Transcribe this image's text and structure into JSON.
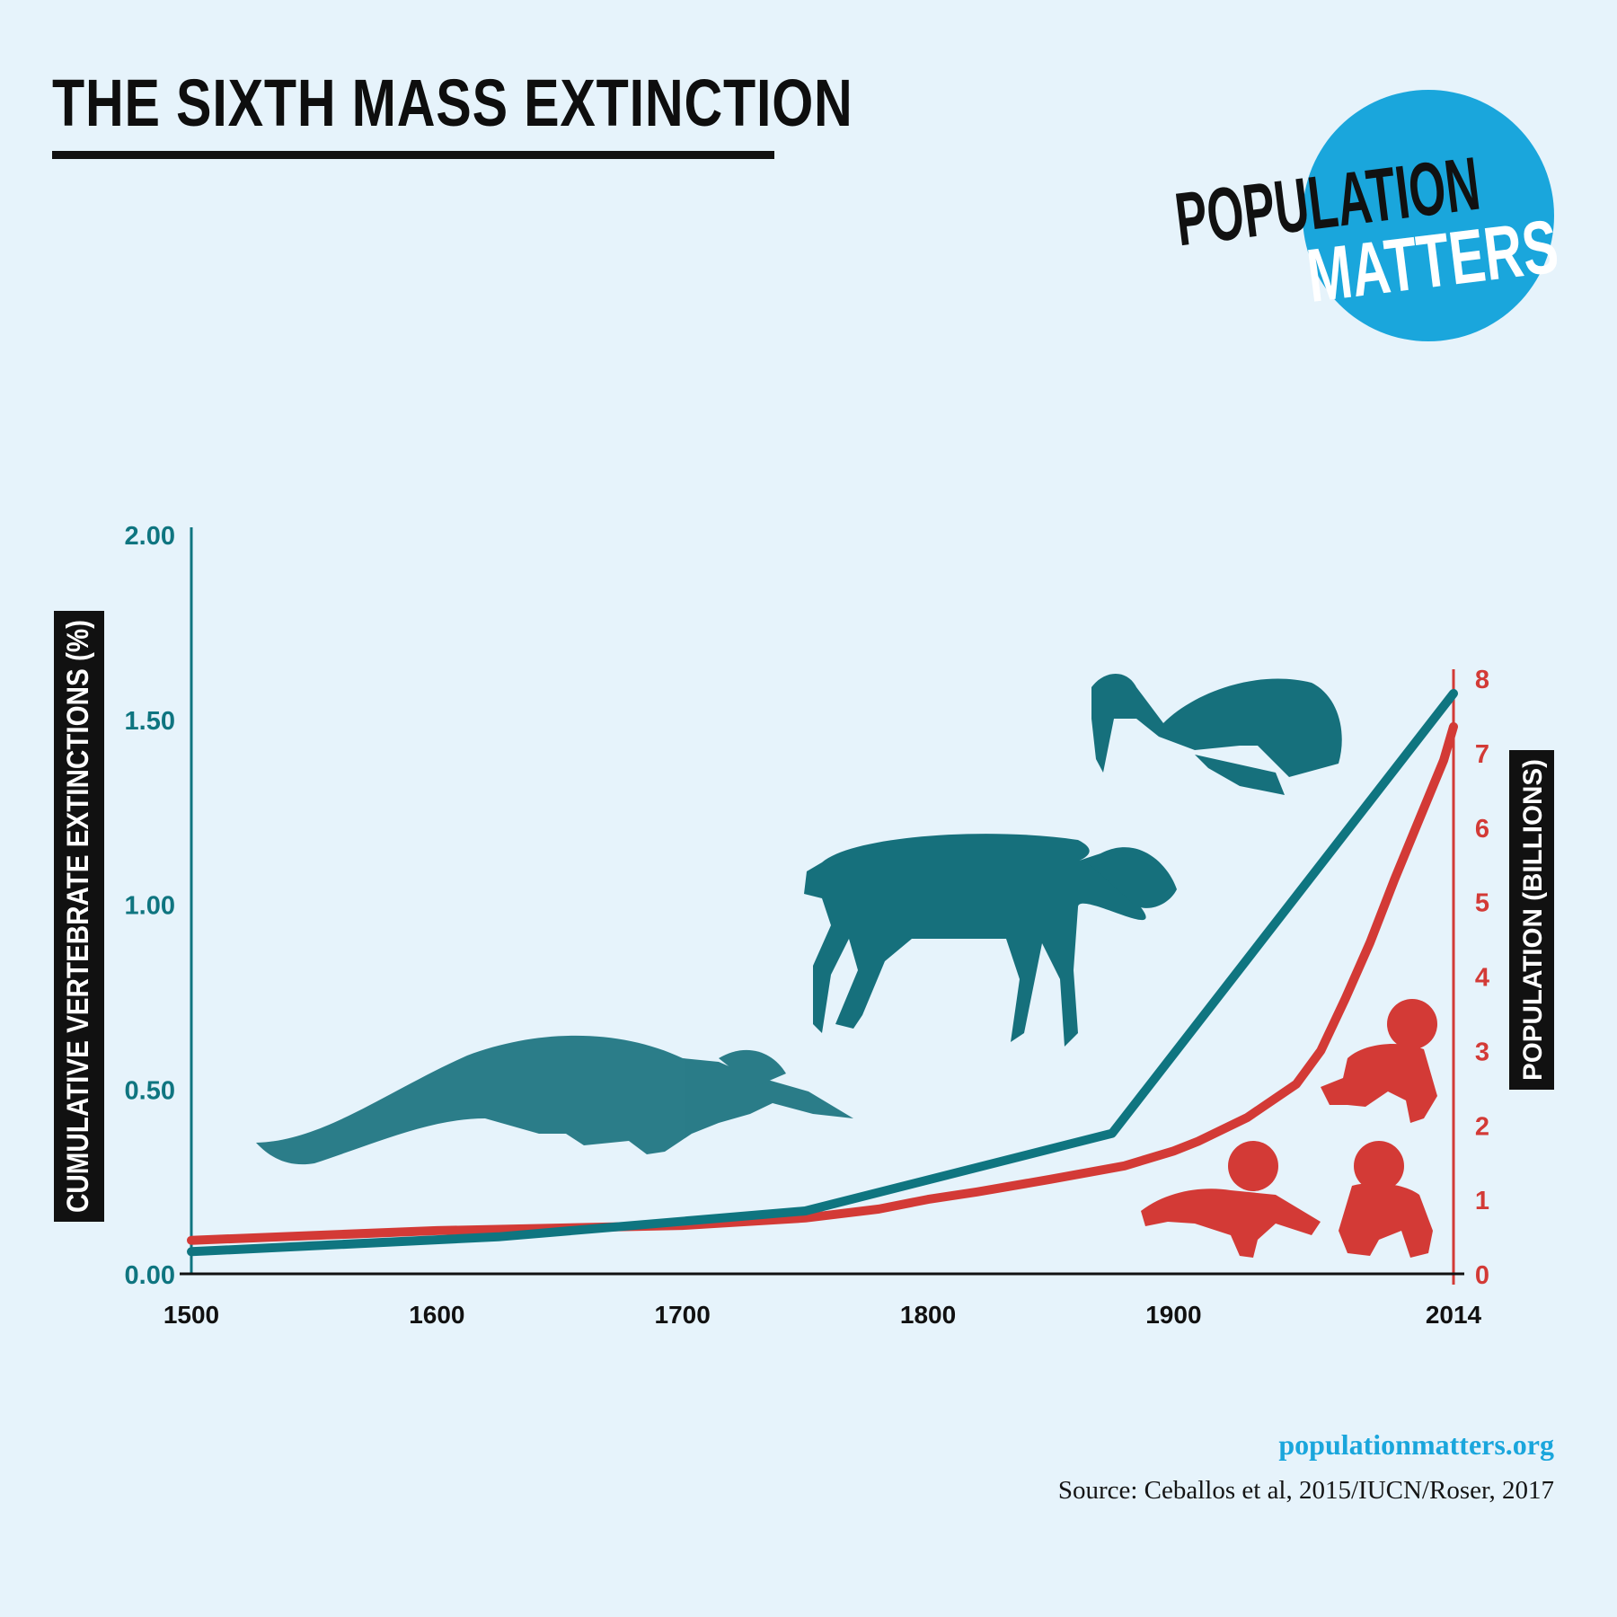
{
  "header": {
    "title": "THE SIXTH MASS EXTINCTION"
  },
  "logo": {
    "word1": "POPULATION",
    "word2": "MATTERS"
  },
  "footer": {
    "url": "populationmatters.org",
    "source": "Source: Ceballos et al, 2015/IUCN/Roser, 2017"
  },
  "colors": {
    "background": "#e6f3fb",
    "extinctions": "#0f7580",
    "population": "#d33a36",
    "logo_circle": "#1aa6dc"
  },
  "illustrations": {
    "extinct_animals": [
      "whale-skeleton-icon",
      "quagga-skeleton-icon",
      "bird-skeleton-icon"
    ],
    "babies": [
      "crawling-baby-icon",
      "crawling-baby-icon",
      "crawling-baby-icon"
    ]
  },
  "chart_data": {
    "type": "line",
    "x_tick_labels": [
      "1500",
      "1600",
      "1700",
      "1800",
      "1900",
      "2014"
    ],
    "x_ticks": [
      1500,
      1600,
      1700,
      1800,
      1900,
      2014
    ],
    "xlim": [
      1500,
      2014
    ],
    "y_left": {
      "label": "CUMULATIVE VERTEBRATE EXTINCTIONS (%)",
      "tick_labels": [
        "0.00",
        "0.50",
        "1.00",
        "1.50",
        "2.00"
      ],
      "ticks": [
        0,
        0.5,
        1.0,
        1.5,
        2.0
      ],
      "ylim": [
        0,
        2.0
      ]
    },
    "y_right": {
      "label": "POPULATION (BILLIONS)",
      "tick_labels": [
        "0",
        "1",
        "2",
        "3",
        "4",
        "5",
        "6",
        "7",
        "8"
      ],
      "ticks": [
        0,
        1,
        2,
        3,
        4,
        5,
        6,
        7,
        8
      ],
      "ylim": [
        0,
        8
      ]
    },
    "grid": false,
    "series": [
      {
        "axis": "left",
        "x": [
          1500,
          1625,
          1750,
          1875,
          2014
        ],
        "values": [
          0.06,
          0.1,
          0.17,
          0.38,
          1.57
        ]
      },
      {
        "axis": "right",
        "x": [
          1500,
          1600,
          1700,
          1750,
          1780,
          1800,
          1820,
          1850,
          1880,
          1900,
          1910,
          1930,
          1950,
          1960,
          1970,
          1980,
          1990,
          2000,
          2010,
          2014
        ],
        "values": [
          0.45,
          0.58,
          0.65,
          0.75,
          0.87,
          1.0,
          1.1,
          1.27,
          1.45,
          1.65,
          1.78,
          2.1,
          2.55,
          3.0,
          3.7,
          4.45,
          5.3,
          6.1,
          6.9,
          7.35
        ]
      }
    ]
  }
}
